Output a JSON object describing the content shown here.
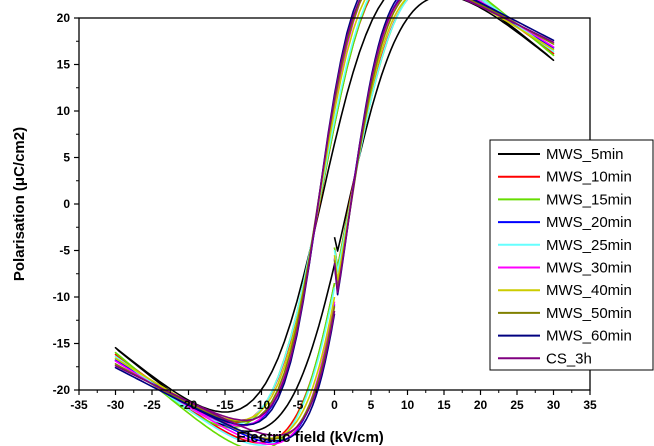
{
  "chart_data": {
    "type": "line",
    "title": "",
    "xlabel": "Electric field (kV/cm)",
    "ylabel": "Polarisation (μC/cm2)",
    "xlim": [
      -35,
      35
    ],
    "ylim": [
      -20,
      20
    ],
    "xticks": [
      -35,
      -30,
      -25,
      -20,
      -15,
      -10,
      -5,
      0,
      5,
      10,
      15,
      20,
      25,
      30,
      35
    ],
    "yticks": [
      -20,
      -15,
      -10,
      -5,
      0,
      5,
      10,
      15,
      20
    ],
    "grid": false,
    "legend_position": "right",
    "series": [
      {
        "name": "MWS_5min",
        "color": "#000000",
        "pmax": 15.5,
        "pr": 6.5,
        "ec": 1.6,
        "wid": 8.5
      },
      {
        "name": "MWS_10min",
        "color": "#ff0000",
        "pmax": 16.2,
        "pr": 8.5,
        "ec": 1.8,
        "wid": 7.0
      },
      {
        "name": "MWS_15min",
        "color": "#66dd00",
        "pmax": 16.0,
        "pr": 8.5,
        "ec": 1.8,
        "wid": 7.5
      },
      {
        "name": "MWS_20min",
        "color": "#0000ff",
        "pmax": 16.8,
        "pr": 10.8,
        "ec": 2.0,
        "wid": 5.5
      },
      {
        "name": "MWS_25min",
        "color": "#66ffff",
        "pmax": 16.4,
        "pr": 9.0,
        "ec": 1.9,
        "wid": 7.0
      },
      {
        "name": "MWS_30min",
        "color": "#ff00ff",
        "pmax": 16.9,
        "pr": 10.5,
        "ec": 2.0,
        "wid": 5.8
      },
      {
        "name": "MWS_40min",
        "color": "#cccc00",
        "pmax": 16.6,
        "pr": 10.0,
        "ec": 2.0,
        "wid": 6.0
      },
      {
        "name": "MWS_50min",
        "color": "#808000",
        "pmax": 17.2,
        "pr": 11.0,
        "ec": 2.1,
        "wid": 5.5
      },
      {
        "name": "MWS_60min",
        "color": "#000080",
        "pmax": 17.6,
        "pr": 11.8,
        "ec": 2.1,
        "wid": 5.0
      },
      {
        "name": "CS_3h",
        "color": "#800080",
        "pmax": 17.4,
        "pr": 11.5,
        "ec": 2.1,
        "wid": 5.0
      }
    ]
  }
}
